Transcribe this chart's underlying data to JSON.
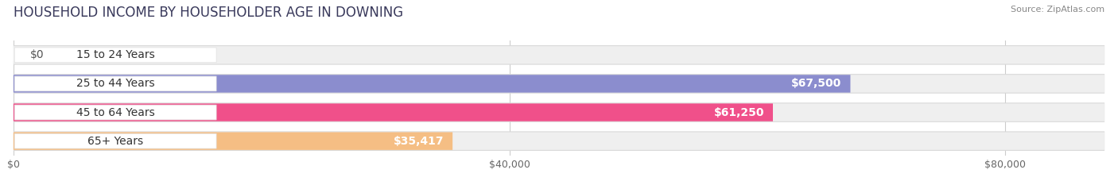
{
  "title": "HOUSEHOLD INCOME BY HOUSEHOLDER AGE IN DOWNING",
  "source": "Source: ZipAtlas.com",
  "categories": [
    "15 to 24 Years",
    "25 to 44 Years",
    "45 to 64 Years",
    "65+ Years"
  ],
  "values": [
    0,
    67500,
    61250,
    35417
  ],
  "bar_colors": [
    "#5ecfca",
    "#8b8dce",
    "#f0508a",
    "#f5be84"
  ],
  "bar_bg_color": "#efefef",
  "bar_border_color": "#dddddd",
  "value_labels": [
    "$0",
    "$67,500",
    "$61,250",
    "$35,417"
  ],
  "x_ticks": [
    0,
    40000,
    80000
  ],
  "x_tick_labels": [
    "$0",
    "$40,000",
    "$80,000"
  ],
  "x_max": 88000,
  "background_color": "#ffffff",
  "title_color": "#3a3a5c",
  "source_color": "#888888",
  "title_fontsize": 12,
  "label_fontsize": 10,
  "tick_fontsize": 9
}
